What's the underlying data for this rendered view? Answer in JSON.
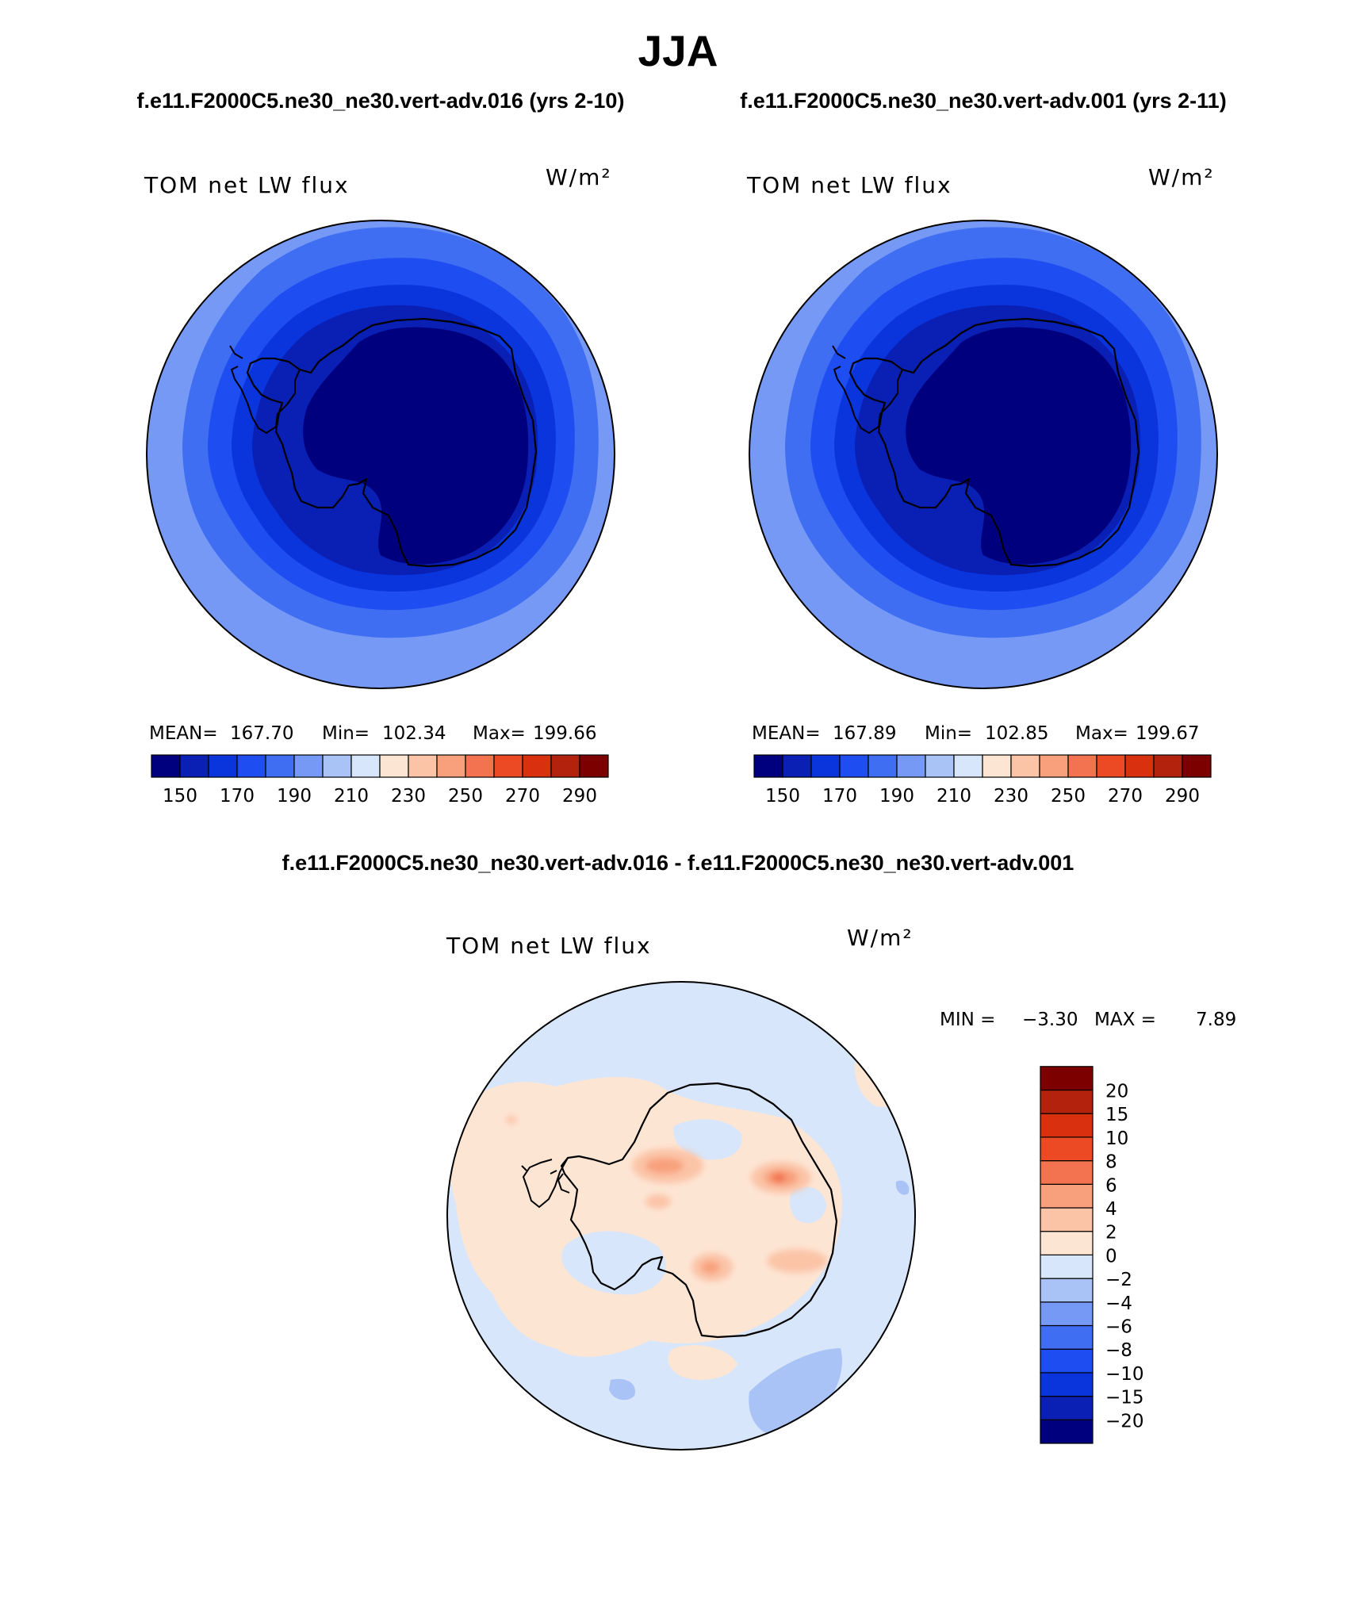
{
  "title": "JJA",
  "case_titles": {
    "left": "f.e11.F2000C5.ne30_ne30.vert-adv.016 (yrs 2-10)",
    "right": "f.e11.F2000C5.ne30_ne30.vert-adv.001 (yrs 2-11)"
  },
  "diff_title": "f.e11.F2000C5.ne30_ne30.vert-adv.016 - f.e11.F2000C5.ne30_ne30.vert-adv.001",
  "chart_data": [
    {
      "type": "heatmap",
      "projection": "south-polar-stereographic",
      "variable": "TOM net LW flux",
      "units": "W/m²",
      "stats": {
        "mean_label": "MEAN=",
        "mean": "167.70",
        "min_label": "Min=",
        "min": "102.34",
        "max_label": "Max=",
        "max": "199.66"
      },
      "levels": [
        150,
        160,
        170,
        180,
        190,
        200,
        210,
        220,
        230,
        240,
        250,
        260,
        270,
        280,
        290
      ],
      "tick_labels": [
        "150",
        "170",
        "190",
        "210",
        "230",
        "250",
        "270",
        "290"
      ],
      "colors": [
        "#00007f",
        "#0a1fb4",
        "#0a34dc",
        "#1e4df2",
        "#3f6ef2",
        "#7599f4",
        "#a9c3f6",
        "#d7e6fa",
        "#fde5d4",
        "#fbc4a7",
        "#f8a07c",
        "#f37351",
        "#ec4a25",
        "#d93110",
        "#b3220d",
        "#7d0000"
      ]
    },
    {
      "type": "heatmap",
      "projection": "south-polar-stereographic",
      "variable": "TOM net LW flux",
      "units": "W/m²",
      "stats": {
        "mean_label": "MEAN=",
        "mean": "167.89",
        "min_label": "Min=",
        "min": "102.85",
        "max_label": "Max=",
        "max": "199.67"
      },
      "levels": [
        150,
        160,
        170,
        180,
        190,
        200,
        210,
        220,
        230,
        240,
        250,
        260,
        270,
        280,
        290
      ],
      "tick_labels": [
        "150",
        "170",
        "190",
        "210",
        "230",
        "250",
        "270",
        "290"
      ],
      "colors": [
        "#00007f",
        "#0a1fb4",
        "#0a34dc",
        "#1e4df2",
        "#3f6ef2",
        "#7599f4",
        "#a9c3f6",
        "#d7e6fa",
        "#fde5d4",
        "#fbc4a7",
        "#f8a07c",
        "#f37351",
        "#ec4a25",
        "#d93110",
        "#b3220d",
        "#7d0000"
      ]
    },
    {
      "type": "heatmap",
      "projection": "south-polar-stereographic",
      "variable": "TOM net LW flux",
      "units": "W/m²",
      "stats": {
        "min_label": "MIN =",
        "min": "−3.30",
        "max_label": "MAX =",
        "max": "7.89"
      },
      "levels": [
        -20,
        -15,
        -10,
        -8,
        -6,
        -4,
        -2,
        0,
        2,
        4,
        6,
        8,
        10,
        15,
        20
      ],
      "tick_labels": [
        "−20",
        "−15",
        "−10",
        "−8",
        "−6",
        "−4",
        "−2",
        "0",
        "2",
        "4",
        "6",
        "8",
        "10",
        "15",
        "20"
      ],
      "colors": [
        "#00007f",
        "#0a1fb4",
        "#0a34dc",
        "#1e4df2",
        "#3f6ef2",
        "#7599f4",
        "#a9c3f6",
        "#d7e6fa",
        "#fde5d4",
        "#fbc4a7",
        "#f8a07c",
        "#f37351",
        "#ec4a25",
        "#d93110",
        "#b3220d",
        "#7d0000"
      ]
    }
  ]
}
